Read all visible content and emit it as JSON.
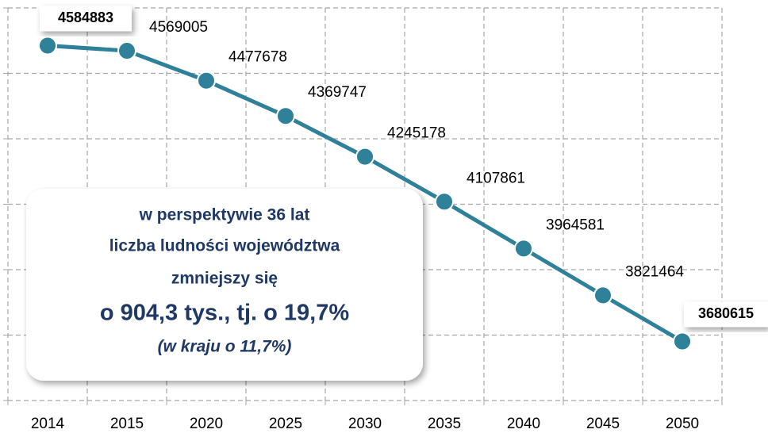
{
  "chart_data": {
    "type": "line",
    "categories": [
      "2014",
      "2015",
      "2020",
      "2025",
      "2030",
      "2035",
      "2040",
      "2045",
      "2050"
    ],
    "series": [
      {
        "color": "#2f8099",
        "values": [
          4584883,
          4569005,
          4477678,
          4369747,
          4245178,
          4107861,
          3964581,
          3821464,
          3680615
        ]
      }
    ],
    "ylim": [
      3500000,
      4700000
    ],
    "yticks": [
      3500000,
      3700000,
      3900000,
      4100000,
      4300000,
      4500000,
      4700000
    ],
    "grid": true,
    "annotation": [
      "w perspektywie 36 lat",
      "liczba ludności województwa",
      "zmniejszy się",
      "o 904,3 tys., tj. o 19,7%",
      "(w kraju o 11,7%)"
    ]
  }
}
